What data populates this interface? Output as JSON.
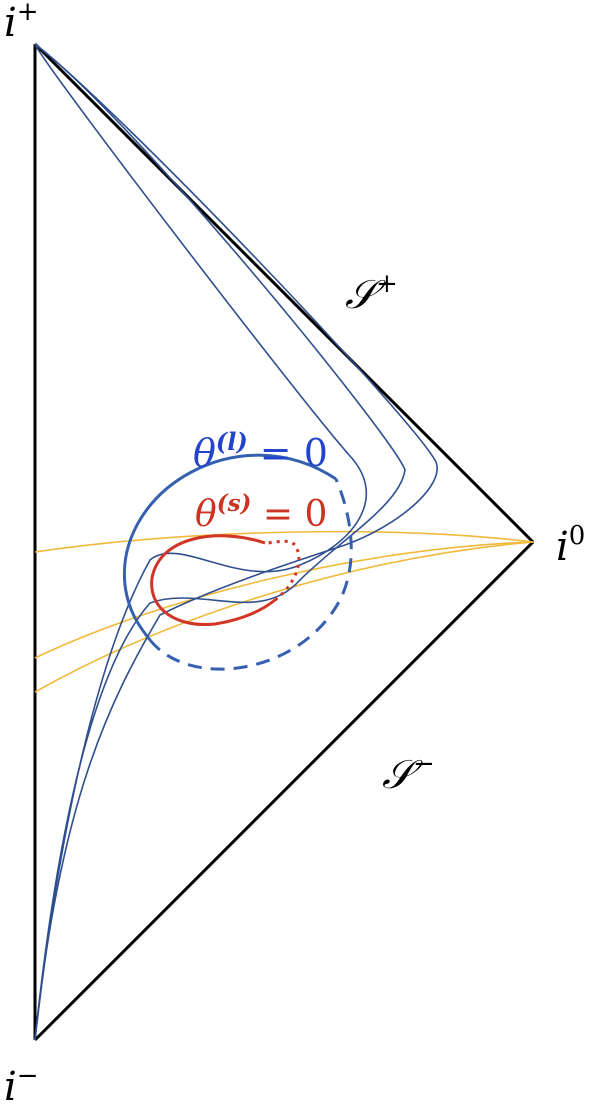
{
  "labels": {
    "i_plus": {
      "base": "i",
      "sup": "+"
    },
    "i_minus": {
      "base": "i",
      "sup": "−"
    },
    "i_zero": {
      "base": "i",
      "sup": "0"
    },
    "scri_plus": {
      "base": "𝒮",
      "sup": "+"
    },
    "scri_minus": {
      "base": "𝒮",
      "sup": "−"
    },
    "theta_l": {
      "base": "θ",
      "sup": "(l)",
      "rhs": " = 0"
    },
    "theta_s": {
      "base": "θ",
      "sup": "(s)",
      "rhs": " = 0"
    }
  },
  "colors": {
    "boundary": "#000000",
    "worldline": "#2f4f8f",
    "horizon_l": "#3560b0",
    "horizon_s": "#d03525",
    "slice": "#f0b93a",
    "label_l": "#2244cc",
    "label_s": "#cc3322"
  }
}
